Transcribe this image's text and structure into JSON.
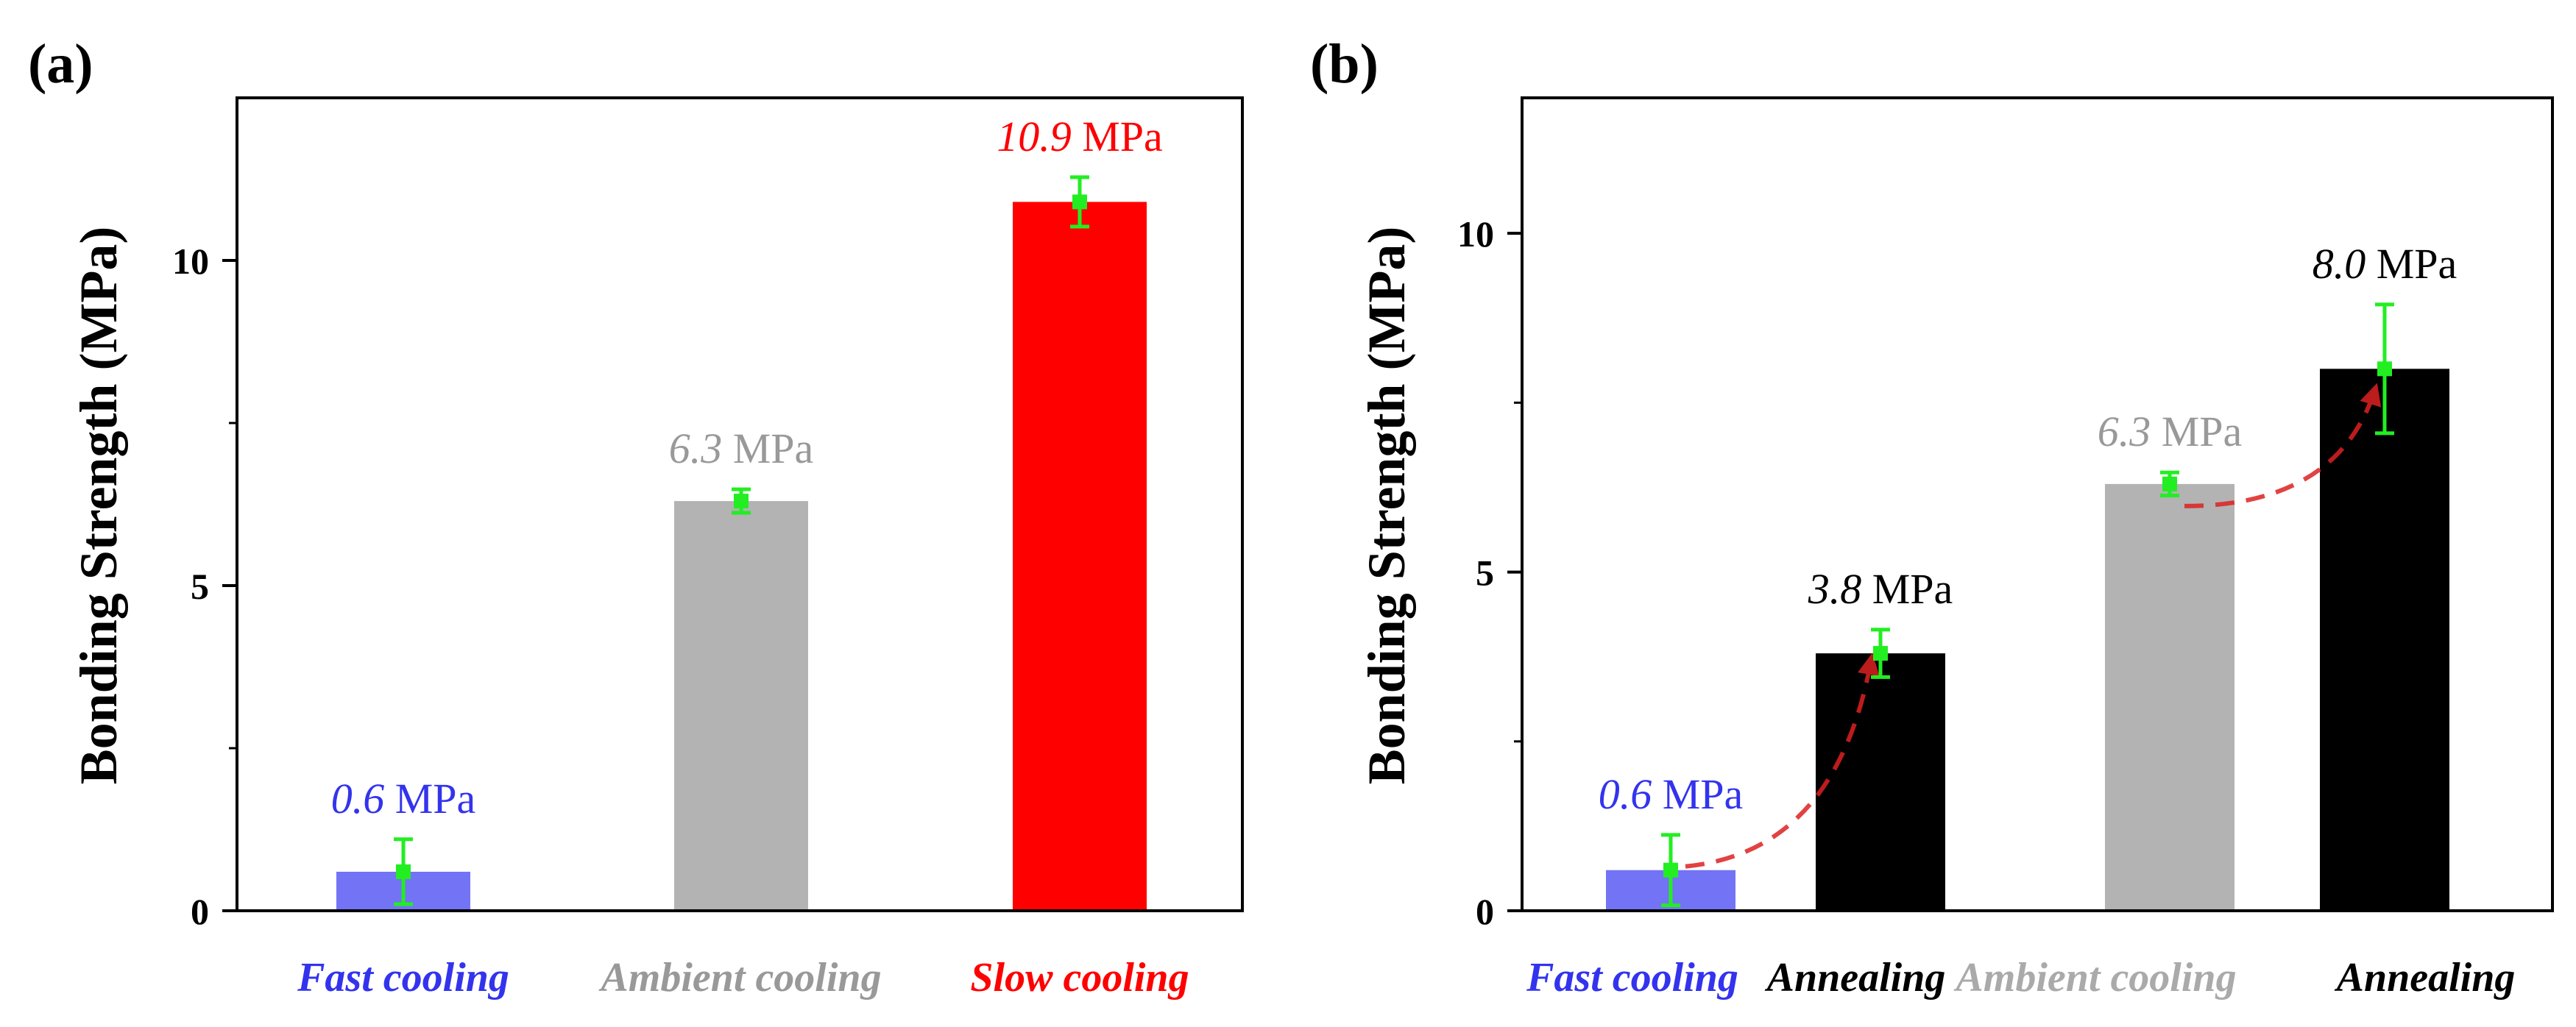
{
  "chart_data": [
    {
      "panel_label": "(a)",
      "type": "bar",
      "ylabel": "Bonding Strength (MPa)",
      "ylim": [
        0,
        12.5
      ],
      "yticks": [
        0,
        5,
        10
      ],
      "ytick_labels": [
        "0",
        "5",
        "10"
      ],
      "categories": [
        "Fast cooling",
        "Ambient cooling",
        "Slow cooling"
      ],
      "category_colors": [
        "#3333ee",
        "#999999",
        "#ff0000"
      ],
      "bars": [
        {
          "category": "Fast cooling",
          "value": 0.6,
          "error": 0.5,
          "fill": "#7373f5",
          "label_value": "0.6",
          "label_unit": "MPa",
          "label_color": "#3333ee"
        },
        {
          "category": "Ambient cooling",
          "value": 6.3,
          "error": 0.18,
          "fill": "#b3b3b3",
          "label_value": "6.3",
          "label_unit": "MPa",
          "label_color": "#999999"
        },
        {
          "category": "Slow cooling",
          "value": 10.9,
          "error": 0.38,
          "fill": "#ff0000",
          "label_value": "10.9",
          "label_unit": "MPa",
          "label_color": "#ff0000"
        }
      ],
      "errorbar_color": "#22ee22"
    },
    {
      "panel_label": "(b)",
      "type": "bar",
      "ylabel": "Bonding Strength (MPa)",
      "ylim": [
        0,
        12
      ],
      "yticks": [
        0,
        5,
        10
      ],
      "ytick_labels": [
        "0",
        "5",
        "10"
      ],
      "categories": [
        "Fast cooling",
        "Annealing",
        "Ambient cooling",
        "Annealing"
      ],
      "category_colors": [
        "#3333ee",
        "#000000",
        "#aaaaaa",
        "#000000"
      ],
      "bars": [
        {
          "category": "Fast cooling",
          "value": 0.6,
          "error": 0.52,
          "fill": "#7373f5",
          "label_value": "0.6",
          "label_unit": "MPa",
          "label_color": "#3333ee"
        },
        {
          "category": "Annealing",
          "value": 3.8,
          "error": 0.35,
          "fill": "#000000",
          "label_value": "3.8",
          "label_unit": "MPa",
          "label_color": "#000000"
        },
        {
          "category": "Ambient cooling",
          "value": 6.3,
          "error": 0.17,
          "fill": "#b3b3b3",
          "label_value": "6.3",
          "label_unit": "MPa",
          "label_color": "#999999"
        },
        {
          "category": "Annealing",
          "value": 8.0,
          "error": 0.95,
          "fill": "#000000",
          "label_value": "8.0",
          "label_unit": "MPa",
          "label_color": "#000000"
        }
      ],
      "errorbar_color": "#22ee22",
      "annotations": [
        {
          "type": "dashed-arrow",
          "from_bar": 0,
          "to_bar": 1,
          "color": "#ee3333"
        },
        {
          "type": "dashed-arrow",
          "from_bar": 2,
          "to_bar": 3,
          "color": "#ee3333"
        }
      ]
    }
  ]
}
